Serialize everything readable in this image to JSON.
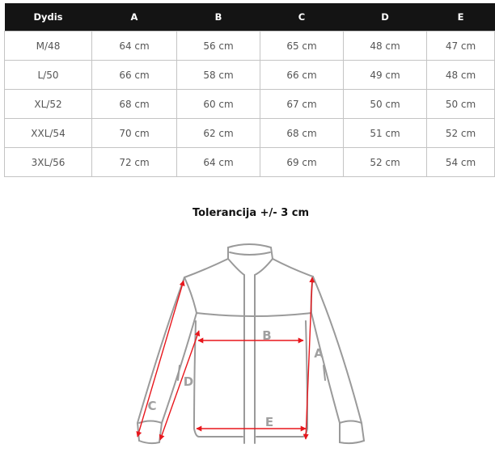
{
  "table": {
    "headers": [
      "Dydis",
      "A",
      "B",
      "C",
      "D",
      "E"
    ],
    "rows": [
      [
        "M/48",
        "64 cm",
        "56 cm",
        "65 cm",
        "48 cm",
        "47 cm"
      ],
      [
        "L/50",
        "66 cm",
        "58 cm",
        "66 cm",
        "49 cm",
        "48 cm"
      ],
      [
        "XL/52",
        "68 cm",
        "60 cm",
        "67 cm",
        "50 cm",
        "50 cm"
      ],
      [
        "XXL/54",
        "70 cm",
        "62 cm",
        "68 cm",
        "51 cm",
        "52 cm"
      ],
      [
        "3XL/56",
        "72 cm",
        "64 cm",
        "69 cm",
        "52 cm",
        "54 cm"
      ]
    ]
  },
  "tolerance": "Tolerancija +/- 3 cm",
  "diagram": {
    "labels": {
      "A": "A",
      "B": "B",
      "C": "C",
      "D": "D",
      "E": "E"
    },
    "line_color": "#9a9a9a",
    "arrow_color": "#e8161c"
  }
}
